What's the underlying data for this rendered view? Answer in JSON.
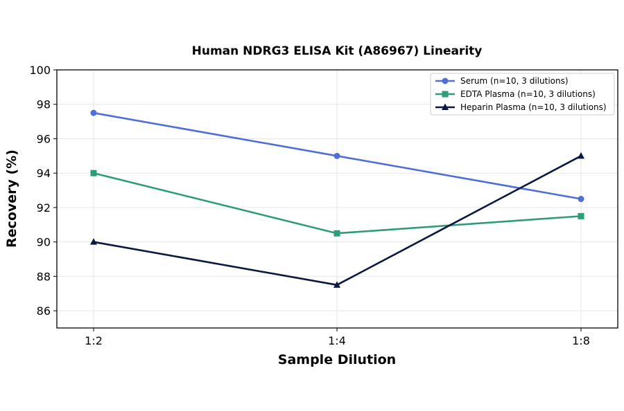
{
  "chart_data": {
    "type": "line",
    "title": "Human NDRG3 ELISA Kit (A86967) Linearity",
    "xlabel": "Sample Dilution",
    "ylabel": "Recovery (%)",
    "categories": [
      "1:2",
      "1:4",
      "1:8"
    ],
    "ylim": [
      85,
      100
    ],
    "yticks": [
      86,
      88,
      90,
      92,
      94,
      96,
      98,
      100
    ],
    "grid": true,
    "legend_position": "top-right",
    "series": [
      {
        "name": "Serum (n=10, 3 dilutions)",
        "values": [
          97.5,
          95.0,
          92.5
        ],
        "color": "#4f6fd8",
        "marker": "circle"
      },
      {
        "name": "EDTA Plasma (n=10, 3 dilutions)",
        "values": [
          94.0,
          90.5,
          91.5
        ],
        "color": "#2e9c78",
        "marker": "square"
      },
      {
        "name": "Heparin Plasma (n=10, 3 dilutions)",
        "values": [
          90.0,
          87.5,
          95.0
        ],
        "color": "#0b1840",
        "marker": "triangle"
      }
    ]
  }
}
